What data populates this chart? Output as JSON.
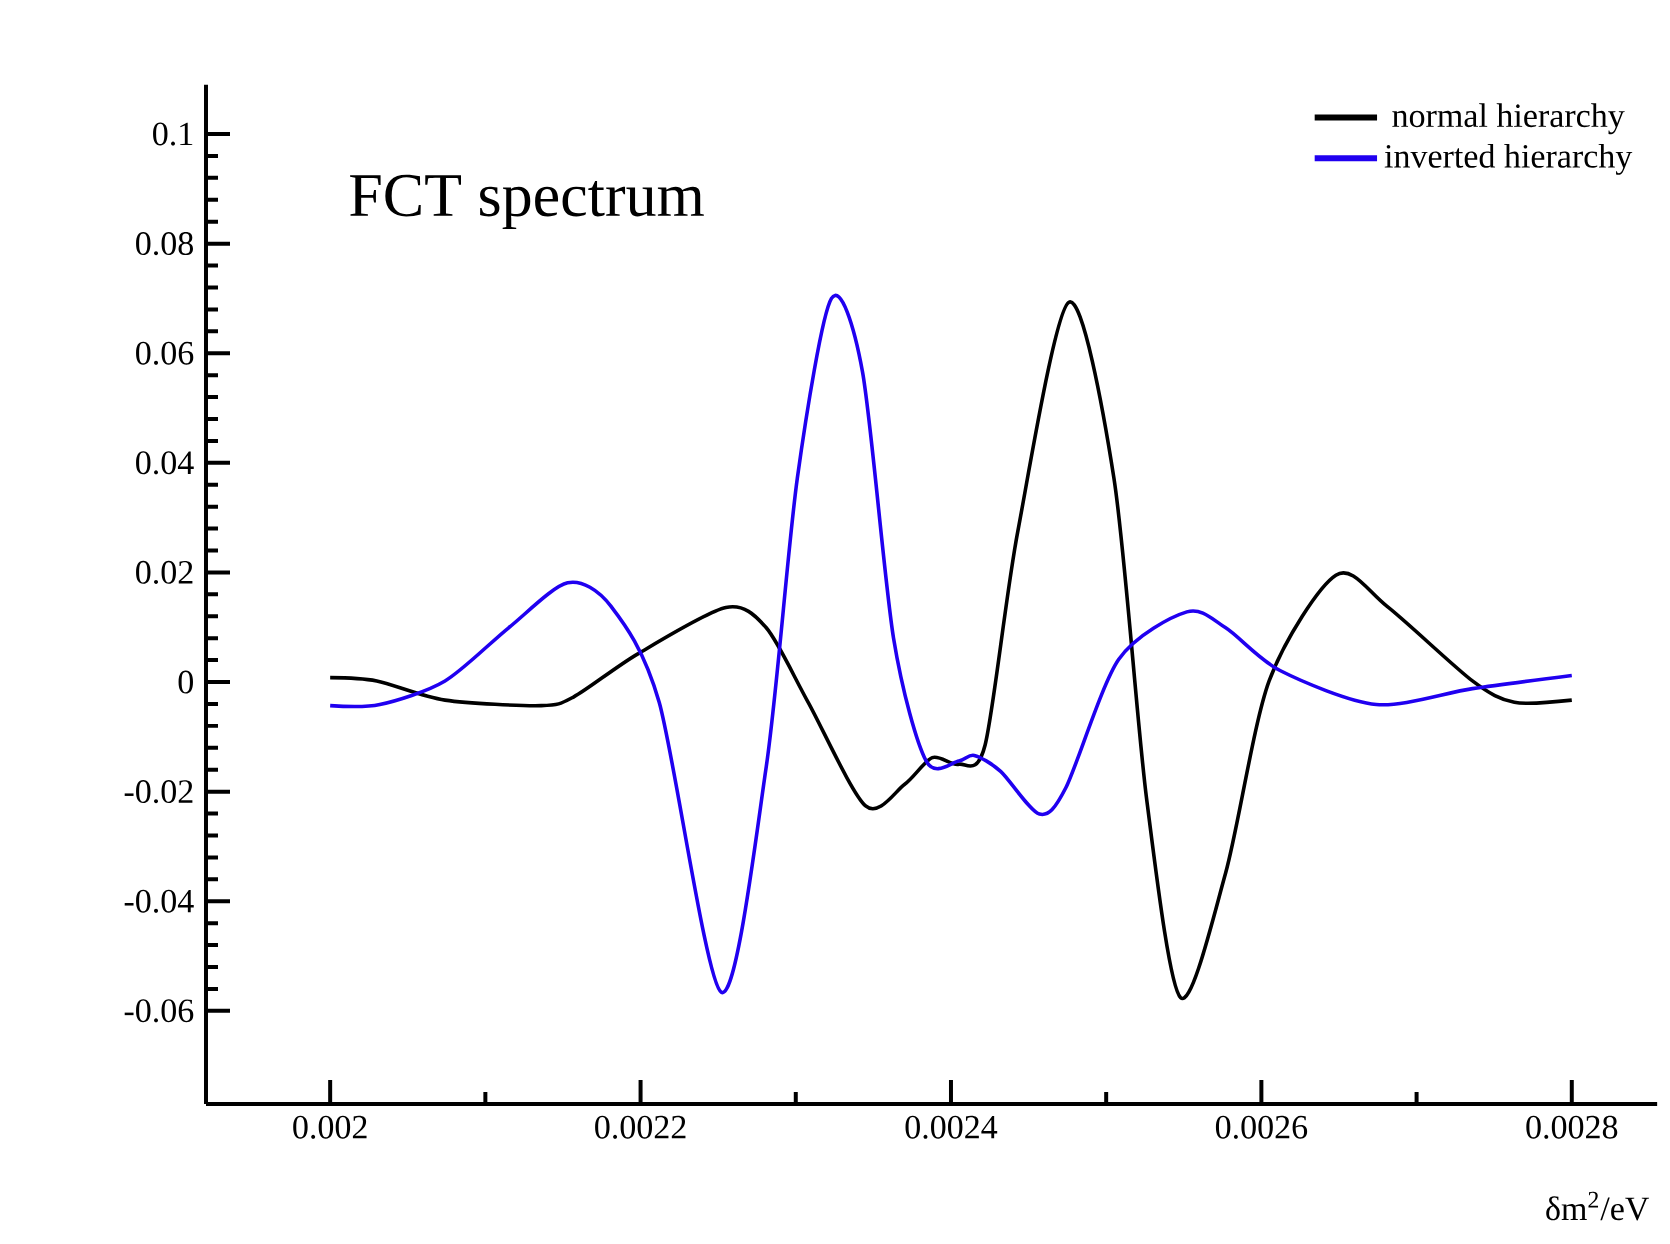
{
  "chart_data": {
    "type": "line",
    "title": "FCT spectrum",
    "xlabel": "δm$^{2}$/eV",
    "xlim": [
      0.00192,
      0.002855
    ],
    "ylim": [
      -0.077,
      0.109
    ],
    "xticks": [
      0.002,
      0.0022,
      0.0024,
      0.0026,
      0.0028
    ],
    "yticks": [
      -0.06,
      -0.04,
      -0.02,
      0,
      0.02,
      0.04,
      0.06,
      0.08,
      0.1
    ],
    "legend": "top right",
    "series": [
      {
        "name": "normal hierarchy",
        "color": "#000000",
        "x": [
          0.002,
          0.00203,
          0.002074,
          0.002136,
          0.002157,
          0.002198,
          0.002255,
          0.002281,
          0.002308,
          0.002345,
          0.00237,
          0.002388,
          0.002405,
          0.002422,
          0.002443,
          0.002476,
          0.002505,
          0.002526,
          0.002548,
          0.002577,
          0.002605,
          0.002648,
          0.002681,
          0.002736,
          0.002763,
          0.0028
        ],
        "values": [
          0.0008,
          0.0002,
          -0.0033,
          -0.0043,
          -0.0027,
          0.0051,
          0.0136,
          0.0099,
          -0.0037,
          -0.0226,
          -0.0187,
          -0.0138,
          -0.015,
          -0.0115,
          0.0274,
          0.0693,
          0.0372,
          -0.0212,
          -0.0576,
          -0.0348,
          0.0002,
          0.0195,
          0.0138,
          0.0002,
          -0.0037,
          -0.0033
        ]
      },
      {
        "name": "inverted hierarchy",
        "color": "#2000f0",
        "x": [
          0.002,
          0.002032,
          0.002074,
          0.002115,
          0.002153,
          0.002181,
          0.002212,
          0.002252,
          0.002281,
          0.002301,
          0.002323,
          0.002343,
          0.002363,
          0.002384,
          0.002405,
          0.002415,
          0.002432,
          0.002457,
          0.002474,
          0.002508,
          0.002552,
          0.002577,
          0.002612,
          0.002674,
          0.002736,
          0.0028
        ],
        "values": [
          -0.0043,
          -0.0041,
          0.0002,
          0.0099,
          0.0181,
          0.0138,
          -0.0037,
          -0.0566,
          -0.0154,
          0.0372,
          0.07,
          0.0566,
          0.008,
          -0.0144,
          -0.0144,
          -0.0134,
          -0.0163,
          -0.0241,
          -0.0193,
          0.0041,
          0.0128,
          0.0099,
          0.0021,
          -0.0041,
          -0.0012,
          0.0012
        ]
      }
    ]
  }
}
